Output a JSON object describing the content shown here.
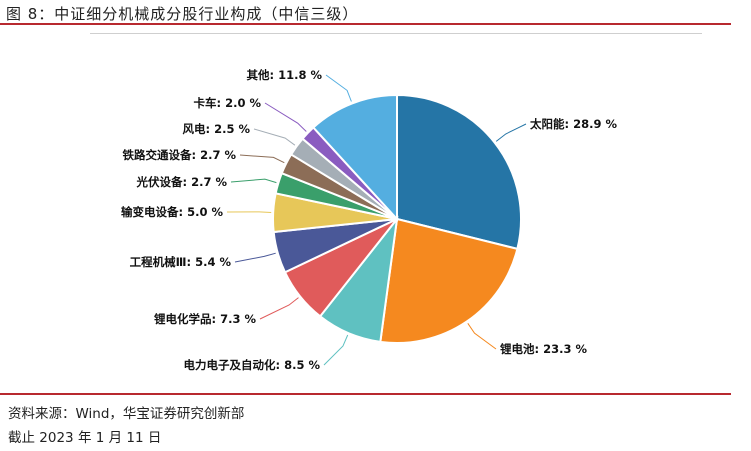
{
  "figure": {
    "title": "图 8：中证细分机械成分股行业构成（中信三级）",
    "source": "资料来源：Wind，华宝证券研究创新部",
    "date": "截止 2023 年 1 月 11 日"
  },
  "chart_data": {
    "type": "pie",
    "title": "图 8：中证细分机械成分股行业构成（中信三级）",
    "unit": "%",
    "slices": [
      {
        "label": "太阳能",
        "value": 28.9,
        "display": "太阳能: 28.9 %",
        "color": "#2575a6"
      },
      {
        "label": "锂电池",
        "value": 23.3,
        "display": "锂电池: 23.3 %",
        "color": "#f5891f"
      },
      {
        "label": "电力电子及自动化",
        "value": 8.5,
        "display": "电力电子及自动化: 8.5 %",
        "color": "#5fc1c1"
      },
      {
        "label": "锂电化学品",
        "value": 7.3,
        "display": "锂电化学品: 7.3 %",
        "color": "#e05b5b"
      },
      {
        "label": "工程机械Ⅲ",
        "value": 5.4,
        "display": "工程机械Ⅲ: 5.4 %",
        "color": "#4a5898"
      },
      {
        "label": "输变电设备",
        "value": 5.0,
        "display": "输变电设备: 5.0 %",
        "color": "#e7c759"
      },
      {
        "label": "光伏设备",
        "value": 2.7,
        "display": "光伏设备: 2.7 %",
        "color": "#3a9f6b"
      },
      {
        "label": "铁路交通设备",
        "value": 2.7,
        "display": "铁路交通设备: 2.7 %",
        "color": "#8c6d57"
      },
      {
        "label": "风电",
        "value": 2.5,
        "display": "风电: 2.5 %",
        "color": "#a5aeb6"
      },
      {
        "label": "卡车",
        "value": 2.0,
        "display": "卡车: 2.0 %",
        "color": "#8a5cc0"
      },
      {
        "label": "其他",
        "value": 11.8,
        "display": "其他: 11.8 %",
        "color": "#54aee0"
      }
    ]
  }
}
